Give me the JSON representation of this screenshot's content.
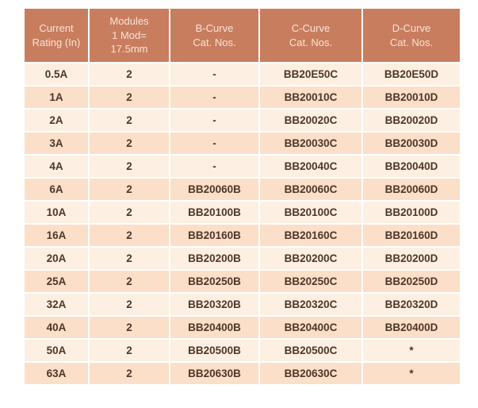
{
  "colors": {
    "page_bg": "#FFFFFF",
    "header_bg": "#C97D5F",
    "header_text": "#F9E4D5",
    "row_light": "#FDF0E2",
    "row_dark": "#FBDFC8",
    "body_text": "#4F3528"
  },
  "table": {
    "headers": [
      "Current\nRating (In)",
      "Modules\n1 Mod=\n17.5mm",
      "B-Curve\nCat. Nos.",
      "C-Curve\nCat. Nos.",
      "D-Curve\nCat. Nos."
    ],
    "rows": [
      [
        "0.5A",
        "2",
        "-",
        "BB20E50C",
        "BB20E50D"
      ],
      [
        "1A",
        "2",
        "-",
        "BB20010C",
        "BB20010D"
      ],
      [
        "2A",
        "2",
        "-",
        "BB20020C",
        "BB20020D"
      ],
      [
        "3A",
        "2",
        "-",
        "BB20030C",
        "BB20030D"
      ],
      [
        "4A",
        "2",
        "-",
        "BB20040C",
        "BB20040D"
      ],
      [
        "6A",
        "2",
        "BB20060B",
        "BB20060C",
        "BB20060D"
      ],
      [
        "10A",
        "2",
        "BB20100B",
        "BB20100C",
        "BB20100D"
      ],
      [
        "16A",
        "2",
        "BB20160B",
        "BB20160C",
        "BB20160D"
      ],
      [
        "20A",
        "2",
        "BB20200B",
        "BB20200C",
        "BB20200D"
      ],
      [
        "25A",
        "2",
        "BB20250B",
        "BB20250C",
        "BB20250D"
      ],
      [
        "32A",
        "2",
        "BB20320B",
        "BB20320C",
        "BB20320D"
      ],
      [
        "40A",
        "2",
        "BB20400B",
        "BB20400C",
        "BB20400D"
      ],
      [
        "50A",
        "2",
        "BB20500B",
        "BB20500C",
        "*"
      ],
      [
        "63A",
        "2",
        "BB20630B",
        "BB20630C",
        "*"
      ]
    ]
  }
}
